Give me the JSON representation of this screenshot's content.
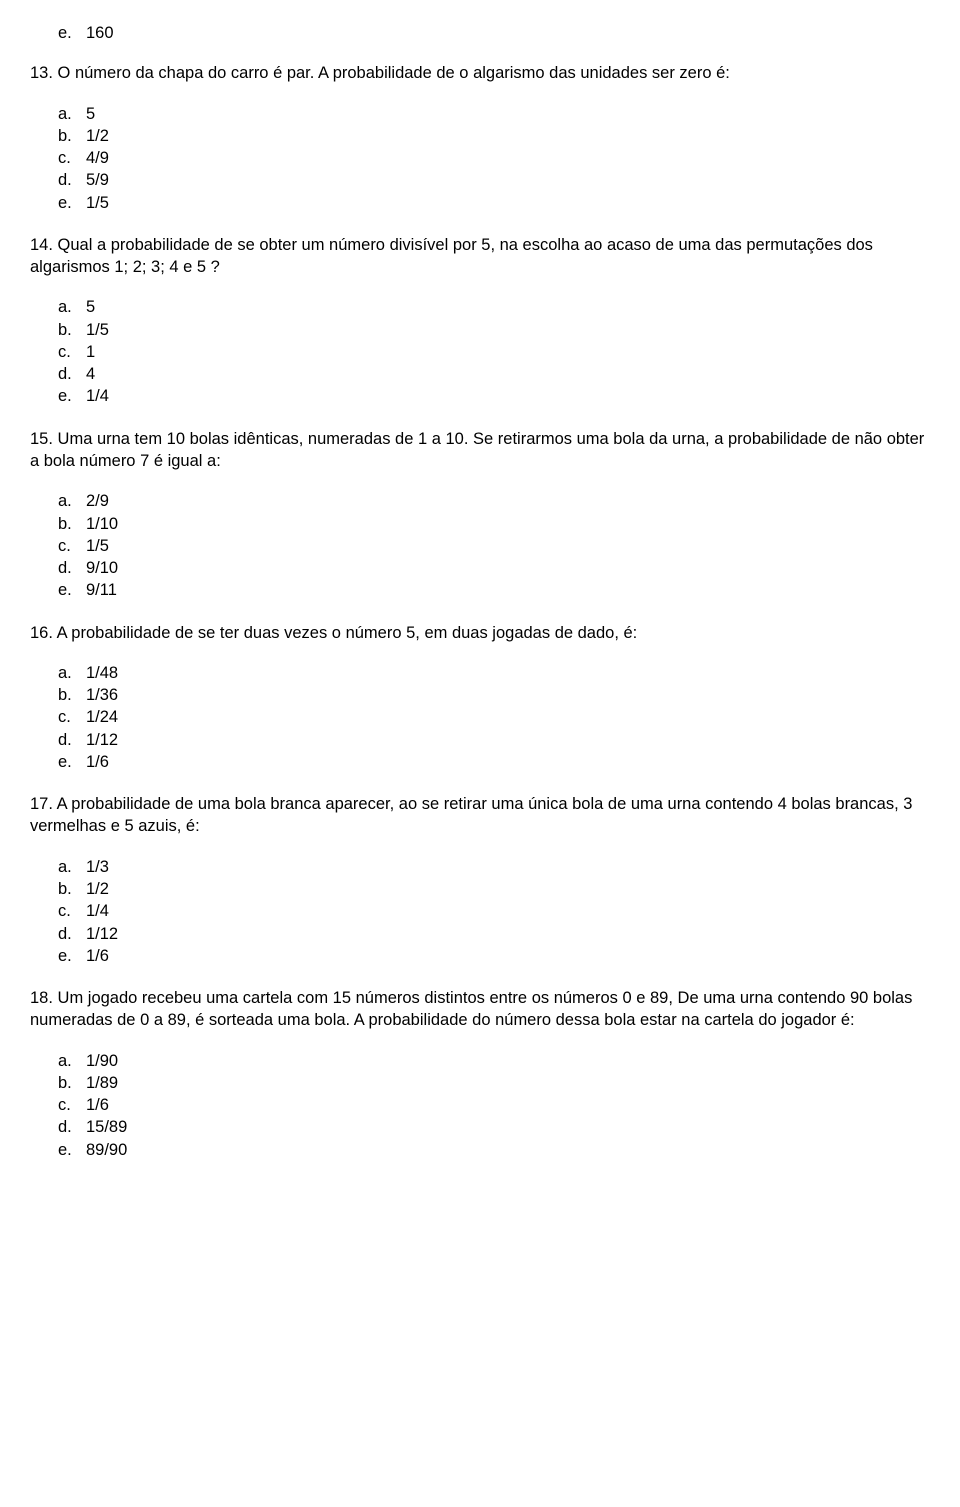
{
  "orphan": {
    "letter": "e.",
    "value": "160"
  },
  "questions": [
    {
      "num": "13.",
      "text": "O número da chapa do carro é par. A probabilidade de o algarismo das unidades ser zero é:",
      "options": [
        {
          "letter": "a.",
          "value": "5"
        },
        {
          "letter": "b.",
          "value": "1/2"
        },
        {
          "letter": "c.",
          "value": "4/9"
        },
        {
          "letter": "d.",
          "value": "5/9"
        },
        {
          "letter": "e.",
          "value": "1/5"
        }
      ]
    },
    {
      "num": "14.",
      "text": "Qual a probabilidade de se obter um número divisível por 5, na escolha ao acaso de uma das permutações dos algarismos 1; 2; 3; 4 e 5 ?",
      "options": [
        {
          "letter": "a.",
          "value": "5"
        },
        {
          "letter": "b.",
          "value": "1/5"
        },
        {
          "letter": "c.",
          "value": "1"
        },
        {
          "letter": "d.",
          "value": "4"
        },
        {
          "letter": "e.",
          "value": "1/4"
        }
      ]
    },
    {
      "num": "15.",
      "text": "Uma urna tem 10 bolas idênticas, numeradas de 1 a 10. Se retirarmos uma bola da urna, a probabilidade de não obter a bola número 7 é igual a:",
      "options": [
        {
          "letter": "a.",
          "value": "2/9"
        },
        {
          "letter": "b.",
          "value": "1/10"
        },
        {
          "letter": "c.",
          "value": "1/5"
        },
        {
          "letter": "d.",
          "value": "9/10"
        },
        {
          "letter": "e.",
          "value": "9/11"
        }
      ]
    },
    {
      "num": "16.",
      "text": "A probabilidade de se ter duas vezes o número 5, em duas jogadas de dado, é:",
      "options": [
        {
          "letter": "a.",
          "value": "1/48"
        },
        {
          "letter": "b.",
          "value": "1/36"
        },
        {
          "letter": "c.",
          "value": "1/24"
        },
        {
          "letter": "d.",
          "value": "1/12"
        },
        {
          "letter": "e.",
          "value": "1/6"
        }
      ]
    },
    {
      "num": "17.",
      "text": "A probabilidade de uma bola branca aparecer, ao se retirar uma única bola de uma urna contendo 4 bolas brancas, 3 vermelhas e 5 azuis, é:",
      "options": [
        {
          "letter": "a.",
          "value": "1/3"
        },
        {
          "letter": "b.",
          "value": "1/2"
        },
        {
          "letter": "c.",
          "value": "1/4"
        },
        {
          "letter": "d.",
          "value": "1/12"
        },
        {
          "letter": "e.",
          "value": "1/6"
        }
      ]
    },
    {
      "num": "18.",
      "text": "Um jogado recebeu uma cartela com 15 números distintos entre os números 0 e 89, De uma urna contendo 90 bolas numeradas de 0 a 89, é sorteada uma bola. A probabilidade do número dessa bola estar na cartela do jogador é:",
      "options": [
        {
          "letter": "a.",
          "value": "1/90"
        },
        {
          "letter": "b.",
          "value": "1/89"
        },
        {
          "letter": "c.",
          "value": "1/6"
        },
        {
          "letter": "d.",
          "value": "15/89"
        },
        {
          "letter": "e.",
          "value": "89/90"
        }
      ]
    }
  ]
}
